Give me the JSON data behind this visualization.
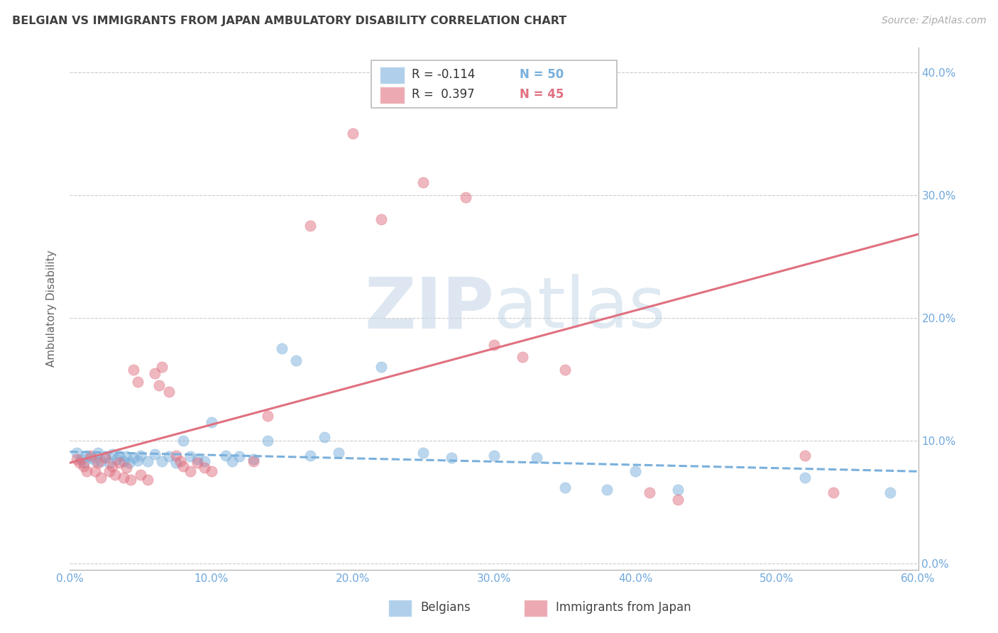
{
  "title": "BELGIAN VS IMMIGRANTS FROM JAPAN AMBULATORY DISABILITY CORRELATION CHART",
  "source": "Source: ZipAtlas.com",
  "ylabel": "Ambulatory Disability",
  "watermark": "ZIPatlas",
  "xlim": [
    0.0,
    0.6
  ],
  "ylim": [
    -0.005,
    0.42
  ],
  "yticks": [
    0.0,
    0.1,
    0.2,
    0.3,
    0.4
  ],
  "xticks": [
    0.0,
    0.1,
    0.2,
    0.3,
    0.4,
    0.5,
    0.6
  ],
  "legend_labels": [
    "Belgians",
    "Immigrants from Japan"
  ],
  "legend_r_n": [
    {
      "r": "R = -0.114",
      "n": "N = 50",
      "color": "#6fa8dc"
    },
    {
      "r": "R =  0.397",
      "n": "N = 45",
      "color": "#e07080"
    }
  ],
  "blue_color": "#7ab0dc",
  "pink_color": "#e07080",
  "axis_label_color": "#6fa8dc",
  "title_color": "#404040",
  "grid_color": "#cccccc",
  "blue_scatter": [
    [
      0.005,
      0.09
    ],
    [
      0.008,
      0.085
    ],
    [
      0.01,
      0.082
    ],
    [
      0.012,
      0.088
    ],
    [
      0.015,
      0.086
    ],
    [
      0.018,
      0.084
    ],
    [
      0.02,
      0.09
    ],
    [
      0.022,
      0.083
    ],
    [
      0.025,
      0.087
    ],
    [
      0.028,
      0.082
    ],
    [
      0.03,
      0.089
    ],
    [
      0.033,
      0.085
    ],
    [
      0.035,
      0.088
    ],
    [
      0.038,
      0.083
    ],
    [
      0.04,
      0.087
    ],
    [
      0.042,
      0.082
    ],
    [
      0.045,
      0.086
    ],
    [
      0.048,
      0.084
    ],
    [
      0.05,
      0.088
    ],
    [
      0.055,
      0.083
    ],
    [
      0.06,
      0.089
    ],
    [
      0.065,
      0.083
    ],
    [
      0.07,
      0.087
    ],
    [
      0.075,
      0.082
    ],
    [
      0.08,
      0.1
    ],
    [
      0.085,
      0.087
    ],
    [
      0.09,
      0.085
    ],
    [
      0.095,
      0.083
    ],
    [
      0.1,
      0.115
    ],
    [
      0.11,
      0.088
    ],
    [
      0.115,
      0.083
    ],
    [
      0.12,
      0.087
    ],
    [
      0.13,
      0.085
    ],
    [
      0.14,
      0.1
    ],
    [
      0.15,
      0.175
    ],
    [
      0.16,
      0.165
    ],
    [
      0.17,
      0.088
    ],
    [
      0.18,
      0.103
    ],
    [
      0.19,
      0.09
    ],
    [
      0.22,
      0.16
    ],
    [
      0.25,
      0.09
    ],
    [
      0.27,
      0.086
    ],
    [
      0.3,
      0.088
    ],
    [
      0.33,
      0.086
    ],
    [
      0.35,
      0.062
    ],
    [
      0.38,
      0.06
    ],
    [
      0.4,
      0.075
    ],
    [
      0.43,
      0.06
    ],
    [
      0.52,
      0.07
    ],
    [
      0.58,
      0.058
    ]
  ],
  "pink_scatter": [
    [
      0.005,
      0.085
    ],
    [
      0.007,
      0.082
    ],
    [
      0.01,
      0.079
    ],
    [
      0.012,
      0.075
    ],
    [
      0.015,
      0.088
    ],
    [
      0.018,
      0.075
    ],
    [
      0.02,
      0.082
    ],
    [
      0.022,
      0.07
    ],
    [
      0.025,
      0.086
    ],
    [
      0.028,
      0.075
    ],
    [
      0.03,
      0.079
    ],
    [
      0.032,
      0.072
    ],
    [
      0.035,
      0.082
    ],
    [
      0.038,
      0.07
    ],
    [
      0.04,
      0.078
    ],
    [
      0.043,
      0.068
    ],
    [
      0.045,
      0.158
    ],
    [
      0.048,
      0.148
    ],
    [
      0.05,
      0.072
    ],
    [
      0.055,
      0.068
    ],
    [
      0.06,
      0.155
    ],
    [
      0.063,
      0.145
    ],
    [
      0.065,
      0.16
    ],
    [
      0.07,
      0.14
    ],
    [
      0.075,
      0.088
    ],
    [
      0.078,
      0.083
    ],
    [
      0.08,
      0.079
    ],
    [
      0.085,
      0.075
    ],
    [
      0.09,
      0.082
    ],
    [
      0.095,
      0.078
    ],
    [
      0.1,
      0.075
    ],
    [
      0.13,
      0.083
    ],
    [
      0.14,
      0.12
    ],
    [
      0.17,
      0.275
    ],
    [
      0.2,
      0.35
    ],
    [
      0.22,
      0.28
    ],
    [
      0.25,
      0.31
    ],
    [
      0.28,
      0.298
    ],
    [
      0.3,
      0.178
    ],
    [
      0.32,
      0.168
    ],
    [
      0.35,
      0.158
    ],
    [
      0.41,
      0.058
    ],
    [
      0.43,
      0.052
    ],
    [
      0.52,
      0.088
    ],
    [
      0.54,
      0.058
    ]
  ],
  "blue_line": [
    [
      0.0,
      0.091
    ],
    [
      0.6,
      0.075
    ]
  ],
  "pink_line": [
    [
      0.0,
      0.082
    ],
    [
      0.6,
      0.268
    ]
  ]
}
